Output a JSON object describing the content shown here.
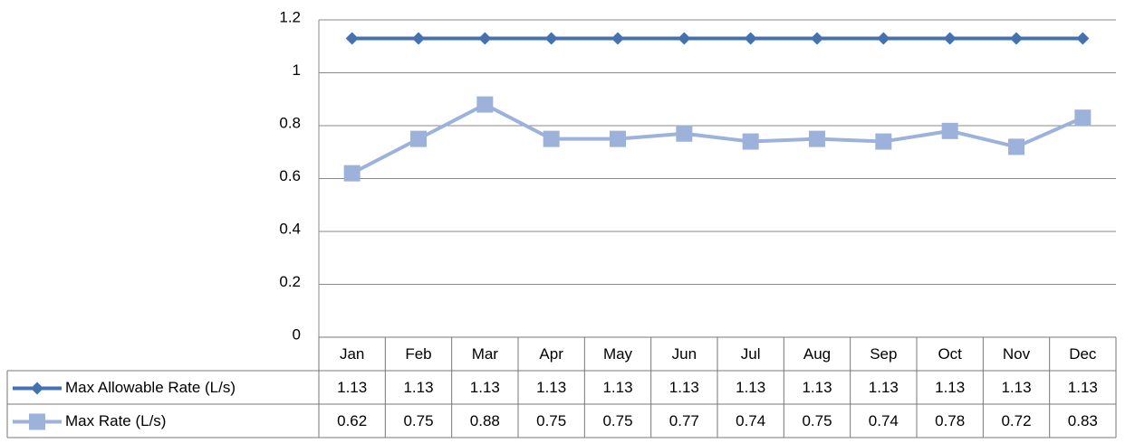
{
  "chart_data": {
    "type": "line",
    "categories": [
      "Jan",
      "Feb",
      "Mar",
      "Apr",
      "May",
      "Jun",
      "Jul",
      "Aug",
      "Sep",
      "Oct",
      "Nov",
      "Dec"
    ],
    "series": [
      {
        "name": "Max Allowable Rate (L/s)",
        "color": "#4472b0",
        "marker": "diamond",
        "values": [
          1.13,
          1.13,
          1.13,
          1.13,
          1.13,
          1.13,
          1.13,
          1.13,
          1.13,
          1.13,
          1.13,
          1.13
        ]
      },
      {
        "name": "Max Rate (L/s)",
        "color": "#9db2da",
        "marker": "square",
        "values": [
          0.62,
          0.75,
          0.88,
          0.75,
          0.75,
          0.77,
          0.74,
          0.75,
          0.74,
          0.78,
          0.72,
          0.83
        ]
      }
    ],
    "ylim": [
      0,
      1.2
    ],
    "yticks": [
      0,
      0.2,
      0.4,
      0.6,
      0.8,
      1,
      1.2
    ],
    "grid": true,
    "data_table": true
  }
}
